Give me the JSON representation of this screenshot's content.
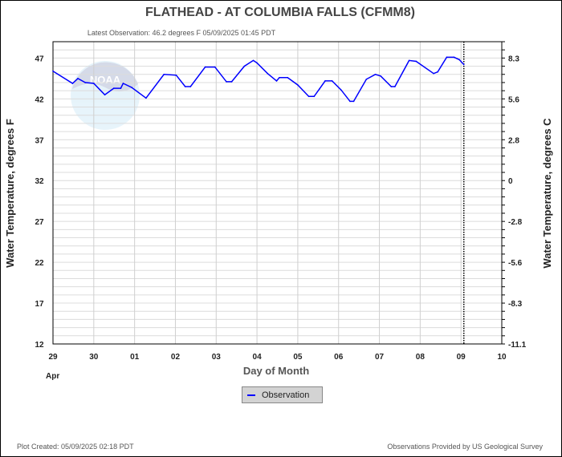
{
  "chart_data": {
    "type": "line",
    "title": "FLATHEAD - AT COLUMBIA FALLS  (CFMM8)",
    "subtitle": "Latest Observation: 46.2 degrees F 05/09/2025 01:45 PDT",
    "xlabel": "Day of Month",
    "ylabel": "Water Temperature, degrees F",
    "y2label": "Water Temperature, degrees C",
    "x_unit": "days since Apr 29 00:00",
    "xlim": [
      0,
      11
    ],
    "ylim": [
      12,
      49
    ],
    "x_ticks": [
      "29",
      "30",
      "01",
      "02",
      "03",
      "04",
      "05",
      "06",
      "07",
      "08",
      "09",
      "10"
    ],
    "x_month_label": "Apr",
    "y_ticks": [
      12,
      17,
      22,
      27,
      32,
      37,
      42,
      47
    ],
    "y2_ticks": [
      "-11.1",
      "-8.3",
      "-5.6",
      "-2.8",
      "0",
      "2.8",
      "5.6",
      "8.3"
    ],
    "grid": true,
    "latest_observation_x": 10.07,
    "legend": {
      "placement": "bottom-center",
      "entries": [
        "Observation"
      ]
    },
    "series": [
      {
        "name": "Observation",
        "color": "#0000ff",
        "x": [
          0,
          0.48,
          0.61,
          0.79,
          1.0,
          1.27,
          1.49,
          1.66,
          1.72,
          1.93,
          2.28,
          2.72,
          3.02,
          3.24,
          3.37,
          3.73,
          3.97,
          4.25,
          4.38,
          4.69,
          4.91,
          5.0,
          5.26,
          5.48,
          5.55,
          5.75,
          6.0,
          6.27,
          6.4,
          6.53,
          6.67,
          6.84,
          7.06,
          7.28,
          7.37,
          7.68,
          7.9,
          8.03,
          8.29,
          8.38,
          8.73,
          8.9,
          9.33,
          9.43,
          9.65,
          9.83,
          9.96,
          10.07
        ],
        "y": [
          45.4,
          43.9,
          44.5,
          44.0,
          43.9,
          42.5,
          43.3,
          43.3,
          43.9,
          43.4,
          42.1,
          45.0,
          44.9,
          43.5,
          43.5,
          45.9,
          45.9,
          44.1,
          44.1,
          46.0,
          46.7,
          46.4,
          45.1,
          44.2,
          44.6,
          44.6,
          43.7,
          42.3,
          42.3,
          43.2,
          44.2,
          44.2,
          43.1,
          41.7,
          41.7,
          44.4,
          45.0,
          44.8,
          43.5,
          43.5,
          46.7,
          46.6,
          45.1,
          45.3,
          47.1,
          47.1,
          46.8,
          46.2
        ]
      }
    ]
  },
  "footer": {
    "created": "Plot Created: 05/09/2025 02:18 PDT",
    "credit": "Observations Provided by US Geological Survey"
  },
  "watermark": "NOAA"
}
